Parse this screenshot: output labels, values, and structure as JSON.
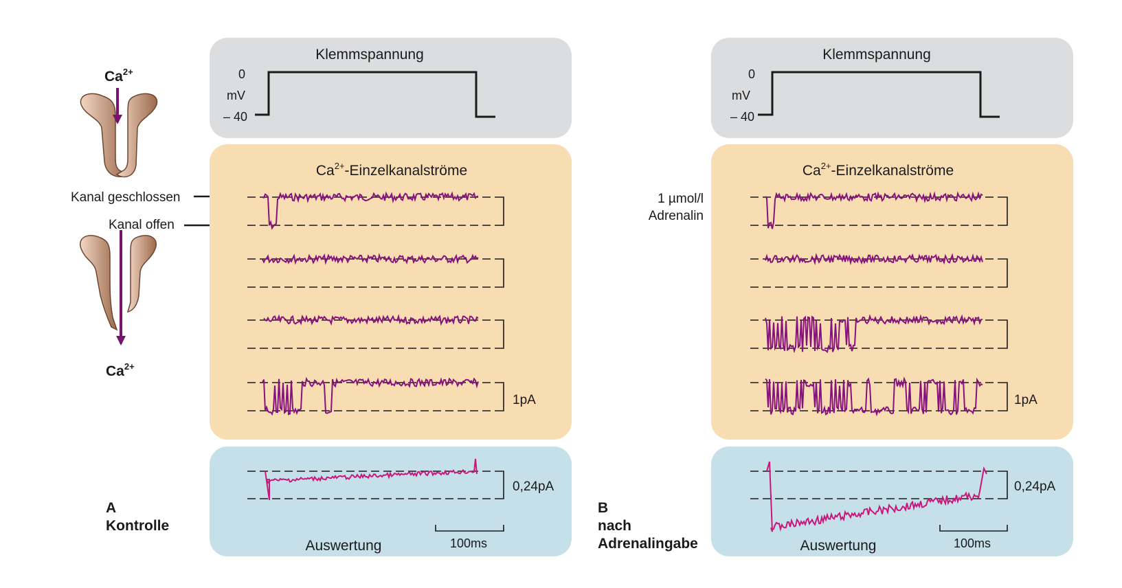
{
  "colors": {
    "voltage_panel": "#dcdddf",
    "current_panel": "#f9ddb2",
    "analysis_panel": "#c5e0e9",
    "channel_body": "#b5876a",
    "arrow": "#7a1270",
    "single_trace": "#86127d",
    "average_trace": "#c8177a"
  },
  "icons": [
    "channel-closed-icon",
    "channel-open-icon",
    "calcium-inflow-arrow-icon"
  ],
  "left": {
    "ca_top": "Ca",
    "ca_top_sup": "2+",
    "ca_bottom": "Ca",
    "ca_bottom_sup": "2+",
    "label_closed": "Kanal geschlossen",
    "label_open": "Kanal offen"
  },
  "panelA": {
    "voltage_title": "Klemmspannung",
    "v_top": "0",
    "v_unit": "mV",
    "v_bottom": "– 40",
    "current_title_pre": "Ca",
    "current_title_sup": "2+",
    "current_title_post": "-Einzelkanalströme",
    "scale_current": "1pA",
    "scale_average": "0,24pA",
    "analysis_title": "Auswertung",
    "time_scale": "100ms",
    "letter": "A",
    "caption": "Kontrolle"
  },
  "panelB": {
    "voltage_title": "Klemmspannung",
    "v_top": "0",
    "v_unit": "mV",
    "v_bottom": "– 40",
    "current_title_pre": "Ca",
    "current_title_sup": "2+",
    "current_title_post": "-Einzelkanalströme",
    "drug_line1": "1 µmol/l",
    "drug_line2": "Adrenalin",
    "scale_current": "1pA",
    "scale_average": "0,24pA",
    "analysis_title": "Auswertung",
    "time_scale": "100ms",
    "letter": "B",
    "caption_line1": "nach",
    "caption_line2": "Adrenalingabe"
  }
}
